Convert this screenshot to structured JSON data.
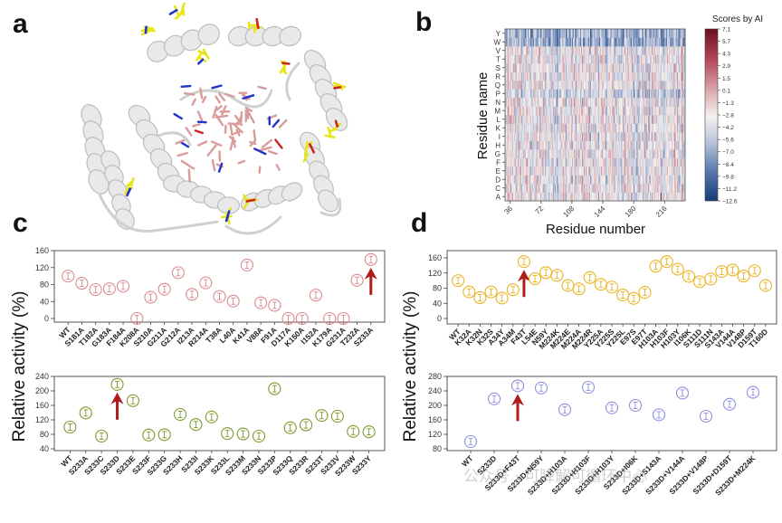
{
  "panels": {
    "a": {
      "label": "a",
      "description": "Protein cartoon structure (gray helices) with pink ligand/binding-site sticks and yellow mutation-site residues"
    },
    "b": {
      "label": "b"
    },
    "c": {
      "label": "c"
    },
    "d": {
      "label": "d"
    }
  },
  "shared": {
    "ylabel_c": "Relative activity (%)",
    "ylabel_d": "Relative activity (%)"
  },
  "watermark": "公众号 · 可降解可循环中心",
  "colors": {
    "c_top": "#d98a8f",
    "c_bottom": "#7d9a2e",
    "d_top": "#e8b420",
    "d_bottom": "#8f8fe0",
    "arrow": "#b01c1c",
    "heat_high": "#6b0f1f",
    "heat_mid": "#f4f1ef",
    "heat_low": "#173c78"
  },
  "chart_data": [
    {
      "id": "b",
      "type": "heatmap",
      "title": "",
      "xlabel": "Residue number",
      "ylabel": "Residue name",
      "x_ticks": [
        "36",
        "72",
        "108",
        "144",
        "180",
        "216"
      ],
      "y_categories": [
        "A",
        "C",
        "D",
        "E",
        "F",
        "G",
        "H",
        "I",
        "K",
        "L",
        "M",
        "N",
        "P",
        "Q",
        "R",
        "S",
        "T",
        "V",
        "W",
        "Y"
      ],
      "x_range": [
        30,
        240
      ],
      "colorbar": {
        "title": "Scores by AI",
        "ticks": [
          "7.1",
          "5.7",
          "4.3",
          "2.9",
          "1.5",
          "0.1",
          "−1.3",
          "−2.8",
          "−4.2",
          "−5.6",
          "−7.0",
          "−8.4",
          "−9.8",
          "−11.2",
          "−12.6"
        ],
        "range": [
          -12.6,
          7.1
        ],
        "colormap": "RdBu_r"
      }
    },
    {
      "id": "c-top",
      "type": "scatter",
      "xlabel": "",
      "ylabel": "Relative activity (%)",
      "ylim": [
        -10,
        160
      ],
      "yticks": [
        "0",
        "40",
        "80",
        "120",
        "160"
      ],
      "categories": [
        "WT",
        "S181A",
        "T182A",
        "G183A",
        "F184A",
        "K208A",
        "S210A",
        "G211A",
        "G212A",
        "I213A",
        "R214A",
        "T38A",
        "L40A",
        "K41A",
        "V88A",
        "F91A",
        "D117A",
        "K150A",
        "I152A",
        "K179A",
        "G231A",
        "T232A",
        "S233A"
      ],
      "values": [
        100,
        83,
        68,
        70,
        76,
        0,
        50,
        69,
        108,
        57,
        84,
        52,
        41,
        126,
        37,
        31,
        0,
        0,
        55,
        0,
        0,
        90,
        139
      ],
      "highlight": "S233A"
    },
    {
      "id": "c-bottom",
      "type": "scatter",
      "xlabel": "",
      "ylabel": "Relative activity (%)",
      "ylim": [
        40,
        240
      ],
      "yticks": [
        "40",
        "80",
        "120",
        "160",
        "200",
        "240"
      ],
      "categories": [
        "WT",
        "S233A",
        "S233C",
        "S233D",
        "S233E",
        "S233F",
        "S233G",
        "S233H",
        "S233I",
        "S233K",
        "S233L",
        "S233M",
        "S233N",
        "S233P",
        "S233Q",
        "S233R",
        "S233T",
        "S233V",
        "S233W",
        "S233Y"
      ],
      "values": [
        100,
        139,
        75,
        218,
        173,
        78,
        79,
        135,
        107,
        128,
        82,
        81,
        75,
        206,
        98,
        106,
        132,
        130,
        88,
        87
      ],
      "highlight": "S233D"
    },
    {
      "id": "d-top",
      "type": "scatter",
      "xlabel": "",
      "ylabel": "Relative activity (%)",
      "ylim": [
        -10,
        175
      ],
      "yticks": [
        "0",
        "40",
        "80",
        "120",
        "160"
      ],
      "categories": [
        "WT",
        "K32A",
        "K32N",
        "K32S",
        "A34Y",
        "A34M",
        "F43T",
        "L54E",
        "N59Y",
        "M224K",
        "M224E",
        "M224A",
        "M224R",
        "Y225A",
        "Y225S",
        "Y225L",
        "E97S",
        "E97T",
        "H103A",
        "H103F",
        "H103Y",
        "I106K",
        "S111D",
        "S111N",
        "S143A",
        "V144A",
        "V148P",
        "D159T",
        "T160D"
      ],
      "values": [
        100,
        70,
        55,
        70,
        54,
        76,
        150,
        105,
        121,
        114,
        87,
        78,
        108,
        90,
        83,
        62,
        53,
        69,
        138,
        150,
        130,
        111,
        97,
        104,
        124,
        128,
        112,
        126,
        87
      ],
      "highlight": "F43T"
    },
    {
      "id": "d-bottom",
      "type": "scatter",
      "xlabel": "",
      "ylabel": "Relative activity (%)",
      "ylim": [
        80,
        280
      ],
      "yticks": [
        "80",
        "120",
        "160",
        "200",
        "240",
        "280"
      ],
      "categories": [
        "WT",
        "S233D",
        "S233D+F43T",
        "S233D+N59Y",
        "S233D+H103A",
        "S233D+H103F",
        "S233D+H103Y",
        "S233D+I06K",
        "S233D+S143A",
        "S233D+V144A",
        "S233D+V148P",
        "S233D+D159T",
        "S233D+M224K"
      ],
      "values": [
        100,
        218,
        254,
        248,
        188,
        250,
        193,
        200,
        174,
        234,
        170,
        203,
        236
      ],
      "highlight": "S233D+F43T"
    }
  ]
}
